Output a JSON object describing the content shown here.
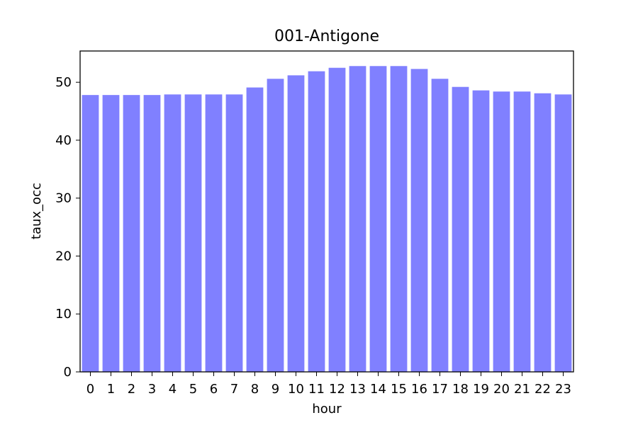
{
  "chart_data": {
    "type": "bar",
    "title": "001-Antigone",
    "xlabel": "hour",
    "ylabel": "taux_occ",
    "categories": [
      "0",
      "1",
      "2",
      "3",
      "4",
      "5",
      "6",
      "7",
      "8",
      "9",
      "10",
      "11",
      "12",
      "13",
      "14",
      "15",
      "16",
      "17",
      "18",
      "19",
      "20",
      "21",
      "22",
      "23"
    ],
    "values": [
      47.8,
      47.8,
      47.8,
      47.8,
      47.9,
      47.9,
      47.9,
      47.9,
      49.1,
      50.6,
      51.2,
      51.9,
      52.5,
      52.8,
      52.8,
      52.8,
      52.3,
      50.6,
      49.2,
      48.6,
      48.4,
      48.4,
      48.1,
      47.9
    ],
    "ylim": [
      0,
      55.4
    ],
    "yticks": [
      0,
      10,
      20,
      30,
      40,
      50
    ],
    "bar_color": "#8080ff",
    "grid": false,
    "legend": "none"
  }
}
